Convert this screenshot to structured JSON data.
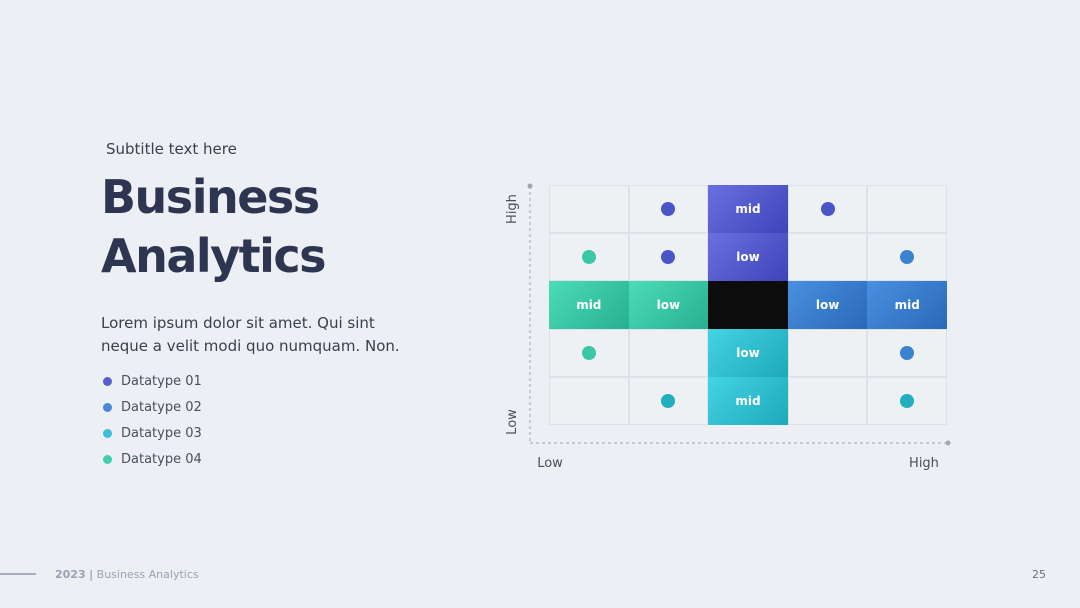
{
  "subtitle": "Subtitle text here",
  "title": "Business Analytics",
  "body": "Lorem ipsum dolor sit amet. Qui sint neque a velit modi quo numquam. Non.",
  "legend": [
    "Datatype 01",
    "Datatype 02",
    "Datatype 03",
    "Datatype 04"
  ],
  "matrix": {
    "rows": [
      [
        null,
        null,
        "mid",
        null,
        null
      ],
      [
        null,
        null,
        "low",
        null,
        null
      ],
      [
        "mid",
        "low",
        null,
        "low",
        "mid"
      ],
      [
        null,
        null,
        "low",
        null,
        null
      ],
      [
        null,
        null,
        "mid",
        null,
        null
      ]
    ],
    "y_axis": {
      "top": "High",
      "bottom": "Low"
    },
    "x_axis": {
      "left": "Low",
      "right": "High"
    }
  },
  "footer": {
    "year": "2023",
    "separator": "|",
    "text": "Business Analytics",
    "page": "25"
  }
}
